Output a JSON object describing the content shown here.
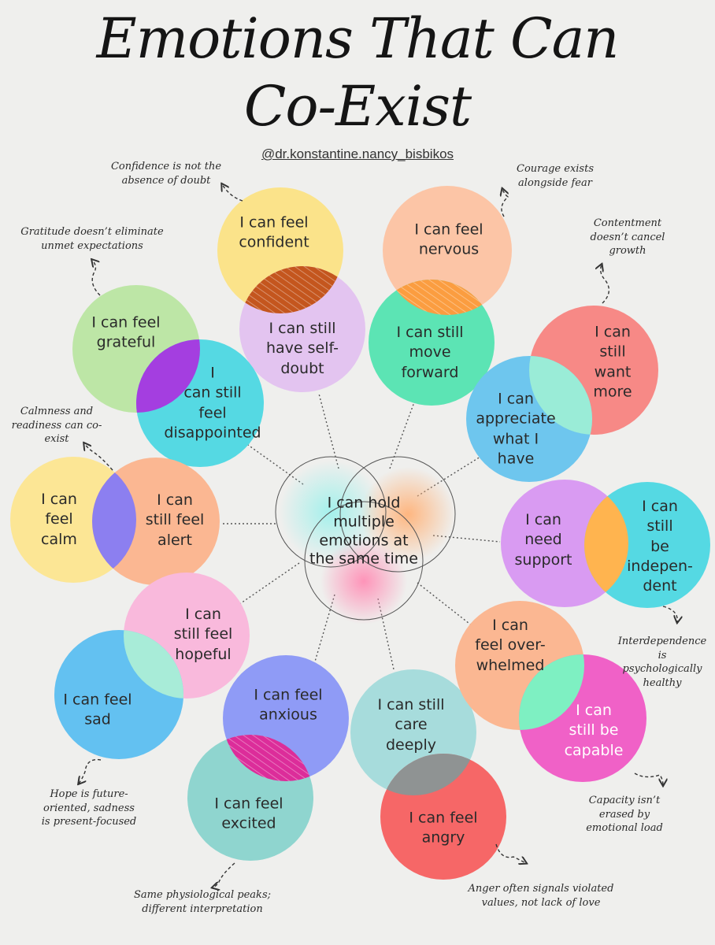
{
  "title_line1": "Emotions That Can",
  "title_line2": "Co-Exist",
  "handle": "@dr.konstantine.nancy_bisbikos",
  "center_label": "I can hold\nmultiple\nemotions at\nthe same time",
  "bubbles": {
    "confident": "I can feel\nconfident",
    "self_doubt": "I can still\nhave self-\ndoubt",
    "nervous": "I can feel\nnervous",
    "move_forward": "I can still\nmove\nforward",
    "grateful": "I can feel\ngrateful",
    "disappointed": "I\ncan still\nfeel\ndisappointed",
    "want_more": "I can\nstill\nwant\nmore",
    "appreciate": "I can\nappreciate\nwhat I\nhave",
    "calm": "I can\nfeel\ncalm",
    "alert": "I can\nstill feel\nalert",
    "need_support": "I can\nneed\nsupport",
    "independent": "I can still\nbe\nindepen-\ndent",
    "hopeful": "I can\nstill feel\nhopeful",
    "sad": "I can feel\nsad",
    "anxious": "I can feel\nanxious",
    "excited": "I can feel\nexcited",
    "care_deeply": "I can still\ncare\ndeeply",
    "angry": "I can feel\nangry",
    "overwhelmed": "I can\nfeel over-\nwhelmed",
    "capable": "I can\nstill be\ncapable"
  },
  "notes": {
    "confidence": "Confidence is not the\nabsence of doubt",
    "courage": "Courage exists\nalongside fear",
    "gratitude": "Gratitude doesn’t eliminate\nunmet expectations",
    "contentment": "Contentment\ndoesn’t cancel\ngrowth",
    "calmness": "Calmness and\nreadiness can co-\nexist",
    "interdependence": "Interdependence is\npsychologically\nhealthy",
    "hope": "Hope is future-\noriented, sadness\nis present-focused",
    "capacity": "Capacity isn’t erased by\nemotional load",
    "physiological": "Same physiological peaks;\ndifferent interpretation",
    "anger": "Anger often signals violated\nvalues, not lack of love"
  },
  "colors": {
    "background": "#efefed",
    "yellow": "#fbe38a",
    "lavender": "#e3c4f0",
    "peach": "#fcc5a6",
    "mint": "#5ce4b4",
    "green": "#bde6a6",
    "cyan": "#55d9e3",
    "coral": "#f78986",
    "blue": "#6ec6ee",
    "pale_yellow": "#fce695",
    "orange_peach": "#fbb792",
    "violet": "#d99bf2",
    "pink": "#f9b9dc",
    "sky": "#63c1f1",
    "periwinkle": "#8f9bf6",
    "teal": "#8fd5cf",
    "light_teal": "#a7dcdc",
    "red": "#f66767",
    "magenta": "#f061c7",
    "overlap_rust": "#c4561e",
    "overlap_orange": "#fb9d40",
    "overlap_purple": "#a43ee0",
    "overlap_indigo": "#8c7ff0",
    "overlap_amber": "#ffb44f",
    "overlap_seafoam": "#9aecd7",
    "overlap_mint": "#6ce7c4",
    "overlap_magenta": "#dc2d9a",
    "overlap_slate": "#8f9393",
    "overlap_green": "#7ef0c2"
  }
}
